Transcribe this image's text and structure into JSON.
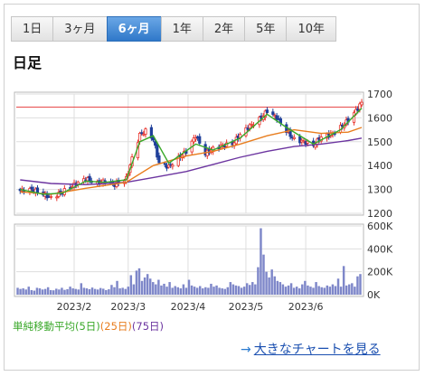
{
  "tabs": [
    {
      "label": "1日",
      "active": false
    },
    {
      "label": "3ヶ月",
      "active": false
    },
    {
      "label": "6ヶ月",
      "active": true
    },
    {
      "label": "1年",
      "active": false
    },
    {
      "label": "2年",
      "active": false
    },
    {
      "label": "5年",
      "active": false
    },
    {
      "label": "10年",
      "active": false
    }
  ],
  "period_label": "日足",
  "legend": {
    "prefix": "単純移動平均",
    "ma5": "(5日)",
    "ma25": "(25日)",
    "ma75": "(75日)"
  },
  "link": {
    "arrow": "→",
    "label": "大きなチャートを見る"
  },
  "colors": {
    "candle_up": "#e8322b",
    "candle_down": "#1f3f9a",
    "ma5": "#39a829",
    "ma25": "#e87d1e",
    "ma75": "#6c35a0",
    "volume": "#7e87c9",
    "ref_line": "#e74a4a",
    "tab_active": "#3b84d6"
  },
  "chart_data": {
    "type": "line",
    "price": {
      "ylim": [
        1200,
        1700
      ],
      "yticks": [
        "1200",
        "1300",
        "1400",
        "1500",
        "1600",
        "1700"
      ],
      "ref_line": 1645,
      "close_points": [
        [
          "2023-01-04",
          1295
        ],
        [
          "2023-01-10",
          1300
        ],
        [
          "2023-01-16",
          1280
        ],
        [
          "2023-01-20",
          1265
        ],
        [
          "2023-01-26",
          1290
        ],
        [
          "2023-02-01",
          1320
        ],
        [
          "2023-02-07",
          1345
        ],
        [
          "2023-02-13",
          1325
        ],
        [
          "2023-02-17",
          1335
        ],
        [
          "2023-02-22",
          1320
        ],
        [
          "2023-02-28",
          1345
        ],
        [
          "2023-03-03",
          1430
        ],
        [
          "2023-03-07",
          1530
        ],
        [
          "2023-03-10",
          1545
        ],
        [
          "2023-03-14",
          1510
        ],
        [
          "2023-03-17",
          1410
        ],
        [
          "2023-03-22",
          1395
        ],
        [
          "2023-03-27",
          1430
        ],
        [
          "2023-03-31",
          1460
        ],
        [
          "2023-04-05",
          1525
        ],
        [
          "2023-04-10",
          1450
        ],
        [
          "2023-04-14",
          1470
        ],
        [
          "2023-04-19",
          1485
        ],
        [
          "2023-04-24",
          1490
        ],
        [
          "2023-04-28",
          1530
        ],
        [
          "2023-05-02",
          1560
        ],
        [
          "2023-05-09",
          1600
        ],
        [
          "2023-05-12",
          1630
        ],
        [
          "2023-05-17",
          1600
        ],
        [
          "2023-05-22",
          1545
        ],
        [
          "2023-05-26",
          1510
        ],
        [
          "2023-05-31",
          1500
        ],
        [
          "2023-06-05",
          1485
        ],
        [
          "2023-06-09",
          1520
        ],
        [
          "2023-06-14",
          1530
        ],
        [
          "2023-06-19",
          1560
        ],
        [
          "2023-06-23",
          1590
        ],
        [
          "2023-06-28",
          1640
        ],
        [
          "2023-06-30",
          1665
        ]
      ],
      "ma5": [
        [
          "2023-01-04",
          1300
        ],
        [
          "2023-01-16",
          1280
        ],
        [
          "2023-01-26",
          1285
        ],
        [
          "2023-02-07",
          1335
        ],
        [
          "2023-02-17",
          1330
        ],
        [
          "2023-02-28",
          1340
        ],
        [
          "2023-03-07",
          1500
        ],
        [
          "2023-03-14",
          1525
        ],
        [
          "2023-03-22",
          1410
        ],
        [
          "2023-04-05",
          1490
        ],
        [
          "2023-04-14",
          1465
        ],
        [
          "2023-04-28",
          1515
        ],
        [
          "2023-05-12",
          1615
        ],
        [
          "2023-05-22",
          1560
        ],
        [
          "2023-06-05",
          1490
        ],
        [
          "2023-06-19",
          1550
        ],
        [
          "2023-06-30",
          1640
        ]
      ],
      "ma25": [
        [
          "2023-01-04",
          1290
        ],
        [
          "2023-01-20",
          1280
        ],
        [
          "2023-02-07",
          1305
        ],
        [
          "2023-02-28",
          1330
        ],
        [
          "2023-03-14",
          1400
        ],
        [
          "2023-03-31",
          1440
        ],
        [
          "2023-04-14",
          1460
        ],
        [
          "2023-04-28",
          1490
        ],
        [
          "2023-05-12",
          1525
        ],
        [
          "2023-05-26",
          1550
        ],
        [
          "2023-06-09",
          1535
        ],
        [
          "2023-06-23",
          1540
        ],
        [
          "2023-06-30",
          1560
        ]
      ],
      "ma75": [
        [
          "2023-01-04",
          1340
        ],
        [
          "2023-01-20",
          1325
        ],
        [
          "2023-02-07",
          1320
        ],
        [
          "2023-02-28",
          1330
        ],
        [
          "2023-03-14",
          1350
        ],
        [
          "2023-03-31",
          1375
        ],
        [
          "2023-04-14",
          1405
        ],
        [
          "2023-04-28",
          1435
        ],
        [
          "2023-05-12",
          1460
        ],
        [
          "2023-05-26",
          1480
        ],
        [
          "2023-06-09",
          1490
        ],
        [
          "2023-06-23",
          1505
        ],
        [
          "2023-06-30",
          1515
        ]
      ]
    },
    "volume": {
      "ylim": [
        0,
        600000
      ],
      "yticks": [
        "0K",
        "200K",
        "400K",
        "600K"
      ],
      "values": [
        60000,
        50000,
        55000,
        45000,
        70000,
        40000,
        35000,
        60000,
        55000,
        45000,
        50000,
        65000,
        40000,
        38000,
        52000,
        45000,
        60000,
        42000,
        48000,
        70000,
        55000,
        50000,
        45000,
        100000,
        60000,
        55000,
        48000,
        62000,
        50000,
        45000,
        58000,
        52000,
        40000,
        47000,
        85000,
        65000,
        120000,
        55000,
        60000,
        50000,
        70000,
        170000,
        90000,
        210000,
        230000,
        120000,
        150000,
        180000,
        140000,
        110000,
        90000,
        130000,
        80000,
        95000,
        70000,
        110000,
        60000,
        75000,
        65000,
        55000,
        90000,
        60000,
        130000,
        80000,
        70000,
        60000,
        75000,
        55000,
        65000,
        60000,
        95000,
        70000,
        80000,
        60000,
        55000,
        50000,
        65000,
        110000,
        90000,
        80000,
        75000,
        60000,
        70000,
        100000,
        85000,
        110000,
        90000,
        240000,
        580000,
        350000,
        200000,
        150000,
        220000,
        160000,
        120000,
        110000,
        90000,
        70000,
        80000,
        100000,
        60000,
        70000,
        55000,
        90000,
        120000,
        80000,
        70000,
        60000,
        110000,
        75000,
        65000,
        60000,
        80000,
        70000,
        90000,
        75000,
        140000,
        70000,
        250000,
        80000,
        90000,
        100000,
        70000,
        160000,
        180000
      ]
    },
    "x_ticks": [
      "2023/2",
      "2023/3",
      "2023/4",
      "2023/5",
      "2023/6"
    ]
  }
}
